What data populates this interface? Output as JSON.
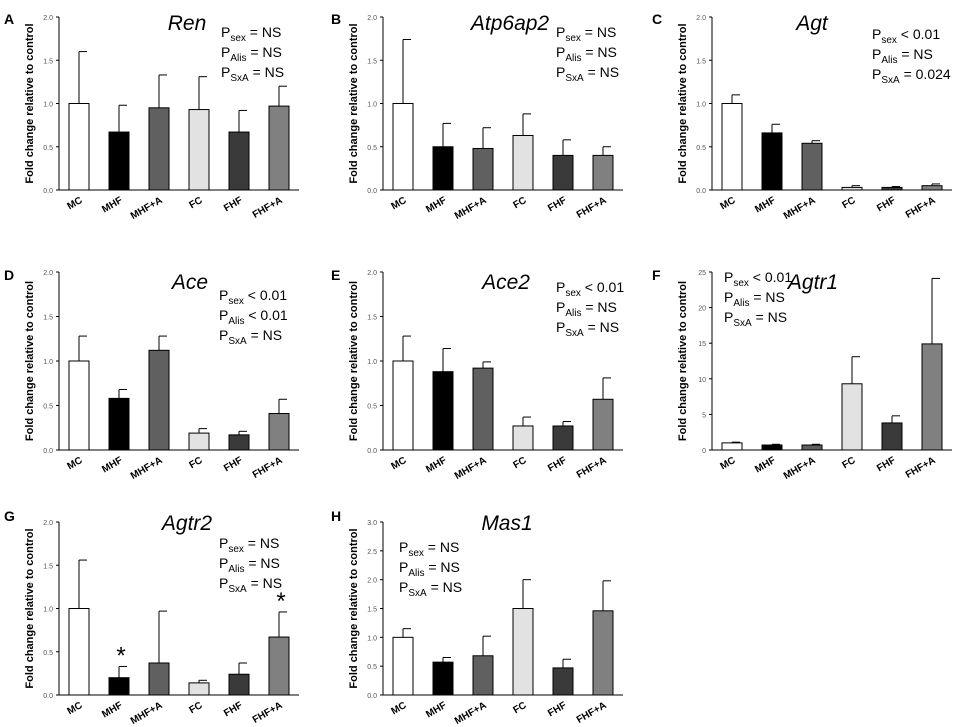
{
  "figure": {
    "ylabel": "Fold change relative to control"
  },
  "colors": {
    "MC": "#ffffff",
    "MHF": "#000000",
    "MHF+A": "#606060",
    "FC": "#e2e2e2",
    "FHF": "#3a3a3a",
    "FHF+A": "#808080",
    "axis": "#000000",
    "tick": "#555555"
  },
  "chart_data": [
    {
      "panel": "A",
      "type": "bar",
      "title": "Ren",
      "categories": [
        "MC",
        "MHF",
        "MHF+A",
        "FC",
        "FHF",
        "FHF+A"
      ],
      "values": [
        1.0,
        0.67,
        0.95,
        0.93,
        0.67,
        0.97
      ],
      "errors": [
        0.6,
        0.31,
        0.38,
        0.38,
        0.25,
        0.23
      ],
      "ylim": [
        0,
        2.0
      ],
      "yticks": [
        "0.0",
        "0.5",
        "1.0",
        "1.5",
        "2.0"
      ],
      "stats": [
        {
          "sub": "sex",
          "text": " = NS"
        },
        {
          "sub": "Alis",
          "text": " = NS"
        },
        {
          "sub": "SxA",
          "text": " = NS"
        }
      ],
      "stars": []
    },
    {
      "panel": "B",
      "type": "bar",
      "title": "Atp6ap2",
      "categories": [
        "MC",
        "MHF",
        "MHF+A",
        "FC",
        "FHF",
        "FHF+A"
      ],
      "values": [
        1.0,
        0.5,
        0.48,
        0.63,
        0.4,
        0.4
      ],
      "errors": [
        0.74,
        0.27,
        0.24,
        0.25,
        0.18,
        0.1
      ],
      "ylim": [
        0,
        2.0
      ],
      "yticks": [
        "0.0",
        "0.5",
        "1.0",
        "1.5",
        "2.0"
      ],
      "stats": [
        {
          "sub": "sex",
          "text": " = NS"
        },
        {
          "sub": "Alis",
          "text": " = NS"
        },
        {
          "sub": "SxA",
          "text": " = NS"
        }
      ],
      "stars": []
    },
    {
      "panel": "C",
      "type": "bar",
      "title": "Agt",
      "categories": [
        "MC",
        "MHF",
        "MHF+A",
        "FC",
        "FHF",
        "FHF+A"
      ],
      "values": [
        1.0,
        0.66,
        0.54,
        0.03,
        0.03,
        0.05
      ],
      "errors": [
        0.1,
        0.1,
        0.03,
        0.02,
        0.01,
        0.02
      ],
      "ylim": [
        0,
        2.0
      ],
      "yticks": [
        "0.0",
        "0.5",
        "1.0",
        "1.5",
        "2.0"
      ],
      "stats": [
        {
          "sub": "sex",
          "text": " < 0.01"
        },
        {
          "sub": "Alis",
          "text": " = NS"
        },
        {
          "sub": "SxA",
          "text": " = 0.024"
        }
      ],
      "stars": []
    },
    {
      "panel": "D",
      "type": "bar",
      "title": "Ace",
      "categories": [
        "MC",
        "MHF",
        "MHF+A",
        "FC",
        "FHF",
        "FHF+A"
      ],
      "values": [
        1.0,
        0.58,
        1.12,
        0.19,
        0.17,
        0.41
      ],
      "errors": [
        0.28,
        0.1,
        0.16,
        0.05,
        0.04,
        0.16
      ],
      "ylim": [
        0,
        2.0
      ],
      "yticks": [
        "0.0",
        "0.5",
        "1.0",
        "1.5",
        "2.0"
      ],
      "stats": [
        {
          "sub": "sex",
          "text": " < 0.01"
        },
        {
          "sub": "Alis",
          "text": " < 0.01"
        },
        {
          "sub": "SxA",
          "text": " = NS"
        }
      ],
      "stars": []
    },
    {
      "panel": "E",
      "type": "bar",
      "title": "Ace2",
      "categories": [
        "MC",
        "MHF",
        "MHF+A",
        "FC",
        "FHF",
        "FHF+A"
      ],
      "values": [
        1.0,
        0.88,
        0.92,
        0.27,
        0.27,
        0.57
      ],
      "errors": [
        0.28,
        0.26,
        0.07,
        0.1,
        0.05,
        0.24
      ],
      "ylim": [
        0,
        2.0
      ],
      "yticks": [
        "0.0",
        "0.5",
        "1.0",
        "1.5",
        "2.0"
      ],
      "stats": [
        {
          "sub": "sex",
          "text": " < 0.01"
        },
        {
          "sub": "Alis",
          "text": " = NS"
        },
        {
          "sub": "SxA",
          "text": " = NS"
        }
      ],
      "stars": []
    },
    {
      "panel": "F",
      "type": "bar",
      "title": "Agtr1",
      "categories": [
        "MC",
        "MHF",
        "MHF+A",
        "FC",
        "FHF",
        "FHF+A"
      ],
      "values": [
        1.0,
        0.7,
        0.7,
        9.3,
        3.8,
        14.9
      ],
      "errors": [
        0.1,
        0.1,
        0.1,
        3.8,
        1.0,
        9.2
      ],
      "ylim": [
        0,
        25
      ],
      "yticks": [
        "0",
        "5",
        "10",
        "15",
        "20",
        "25"
      ],
      "stats": [
        {
          "sub": "sex",
          "text": " < 0.01"
        },
        {
          "sub": "Alis",
          "text": " = NS"
        },
        {
          "sub": "SxA",
          "text": " = NS"
        }
      ],
      "stars": []
    },
    {
      "panel": "G",
      "type": "bar",
      "title": "Agtr2",
      "categories": [
        "MC",
        "MHF",
        "MHF+A",
        "FC",
        "FHF",
        "FHF+A"
      ],
      "values": [
        1.0,
        0.2,
        0.37,
        0.14,
        0.24,
        0.67
      ],
      "errors": [
        0.56,
        0.13,
        0.6,
        0.03,
        0.13,
        0.29
      ],
      "ylim": [
        0,
        2.0
      ],
      "yticks": [
        "0.0",
        "0.5",
        "1.0",
        "1.5",
        "2.0"
      ],
      "stats": [
        {
          "sub": "sex",
          "text": " = NS"
        },
        {
          "sub": "Alis",
          "text": " = NS"
        },
        {
          "sub": "SxA",
          "text": " = NS"
        }
      ],
      "stars": [
        {
          "category": "MHF",
          "symbol": "*"
        },
        {
          "category": "FHF+A",
          "symbol": "*"
        }
      ]
    },
    {
      "panel": "H",
      "type": "bar",
      "title": "Mas1",
      "categories": [
        "MC",
        "MHF",
        "MHF+A",
        "FC",
        "FHF",
        "FHF+A"
      ],
      "values": [
        1.0,
        0.57,
        0.68,
        1.5,
        0.47,
        1.46
      ],
      "errors": [
        0.15,
        0.08,
        0.34,
        0.5,
        0.15,
        0.52
      ],
      "ylim": [
        0,
        3.0
      ],
      "yticks": [
        "0.0",
        "0.5",
        "1.0",
        "1.5",
        "2.0",
        "2.5",
        "3.0"
      ],
      "stats": [
        {
          "sub": "sex",
          "text": " = NS"
        },
        {
          "sub": "Alis",
          "text": " = NS"
        },
        {
          "sub": "SxA",
          "text": " = NS"
        }
      ],
      "stars": []
    }
  ]
}
